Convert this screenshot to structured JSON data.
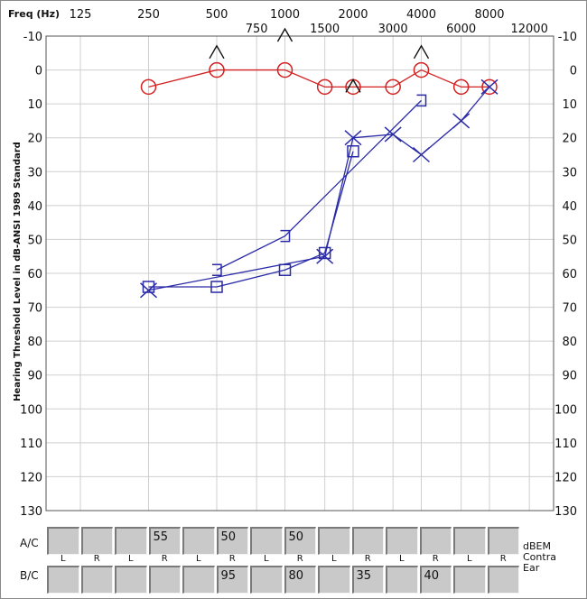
{
  "chart_data": {
    "type": "line",
    "freq_axis_label": "Freq (Hz)",
    "ylabel": "Hearing Threshold Level in dB-ANSI 1989 Standard",
    "x_top_ticks": [
      "125",
      "250",
      "500",
      "1000",
      "2000",
      "4000",
      "8000"
    ],
    "x_bottom_ticks": [
      "750",
      "1500",
      "3000",
      "6000",
      "12000"
    ],
    "y_ticks": [
      "-10",
      "0",
      "10",
      "20",
      "30",
      "40",
      "50",
      "60",
      "70",
      "80",
      "90",
      "100",
      "110",
      "120",
      "130"
    ],
    "ylim": [
      -10,
      130
    ],
    "y_inverted": true,
    "grid": true,
    "series": [
      {
        "color": "#d42020",
        "marker": "circle",
        "connected": true,
        "points": [
          [
            250,
            5
          ],
          [
            500,
            0
          ],
          [
            1000,
            0
          ],
          [
            1500,
            5
          ],
          [
            2000,
            5
          ],
          [
            3000,
            5
          ],
          [
            4000,
            0
          ],
          [
            6000,
            5
          ],
          [
            8000,
            5
          ]
        ]
      },
      {
        "color": "#2a2aa8",
        "marker": "x",
        "connected": true,
        "points": [
          [
            250,
            65
          ],
          [
            1500,
            55
          ],
          [
            2000,
            20
          ],
          [
            3000,
            19
          ],
          [
            4000,
            25
          ],
          [
            6000,
            15
          ],
          [
            8000,
            5
          ]
        ]
      },
      {
        "color": "#2a2aa8",
        "marker": "square",
        "connected": true,
        "points": [
          [
            250,
            64
          ],
          [
            500,
            64
          ],
          [
            1000,
            59
          ],
          [
            1500,
            54
          ],
          [
            2000,
            24
          ]
        ]
      },
      {
        "color": "#2a2aa8",
        "marker": "bracket-right",
        "connected": true,
        "points": [
          [
            500,
            59
          ],
          [
            1000,
            49
          ],
          [
            4000,
            9
          ]
        ]
      },
      {
        "color": "#111111",
        "marker": "caret",
        "connected": false,
        "points": [
          [
            500,
            -5
          ],
          [
            1000,
            -10
          ],
          [
            2000,
            5
          ],
          [
            4000,
            -5
          ]
        ]
      }
    ]
  },
  "masking_panel": {
    "ac_label": "A/C",
    "bc_label": "B/C",
    "unit_lines": [
      "dBEM",
      "Contra",
      "Ear"
    ],
    "ear_letters": [
      "L",
      "R"
    ],
    "ac_values": [
      "",
      "",
      "",
      "55",
      "",
      "50",
      "",
      "50",
      "",
      "",
      "",
      "",
      "",
      ""
    ],
    "bc_values": [
      "",
      "",
      "",
      "",
      "",
      "95",
      "",
      "80",
      "",
      "35",
      "",
      "40",
      "",
      ""
    ]
  }
}
